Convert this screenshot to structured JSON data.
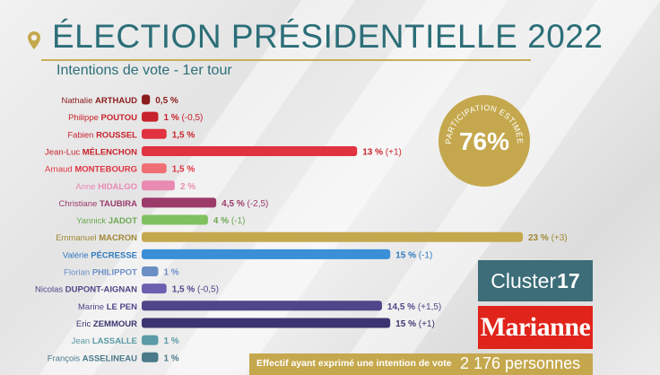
{
  "title": "ÉLECTION PRÉSIDENTIELLE 2022",
  "subtitle": "Intentions de vote - 1er tour",
  "participation": {
    "label": "PARTICIPATION ESTIMÉE",
    "value": "76%"
  },
  "logos": {
    "cluster_name": "Cluster",
    "cluster_number": "17",
    "marianne": "Marianne"
  },
  "footer": {
    "caption": "Effectif ayant exprimé une intention de vote",
    "count": "2 176 personnes"
  },
  "colors": {
    "title": "#2b6e78",
    "accent_gold": "#c5a84d",
    "cluster_blue": "#3c6d78",
    "marianne_red": "#e1241b"
  },
  "chart_data": {
    "type": "bar",
    "orientation": "horizontal",
    "title": "Intentions de vote - 1er tour",
    "categories": [
      {
        "first": "Nathalie",
        "last": "ARTHAUD"
      },
      {
        "first": "Philippe",
        "last": "POUTOU"
      },
      {
        "first": "Fabien",
        "last": "ROUSSEL"
      },
      {
        "first": "Jean-Luc",
        "last": "MÉLENCHON"
      },
      {
        "first": "Arnaud",
        "last": "MONTEBOURG"
      },
      {
        "first": "Anne",
        "last": "HIDALGO"
      },
      {
        "first": "Christiane",
        "last": "TAUBIRA"
      },
      {
        "first": "Yannick",
        "last": "JADOT"
      },
      {
        "first": "Emmanuel",
        "last": "MACRON"
      },
      {
        "first": "Valérie",
        "last": "PÉCRESSE"
      },
      {
        "first": "Florian",
        "last": "PHILIPPOT"
      },
      {
        "first": "Nicolas",
        "last": "DUPONT-AIGNAN"
      },
      {
        "first": "Marine",
        "last": "LE PEN"
      },
      {
        "first": "Eric",
        "last": "ZEMMOUR"
      },
      {
        "first": "Jean",
        "last": "LASSALLE"
      },
      {
        "first": "François",
        "last": "ASSELINEAU"
      }
    ],
    "values": [
      0.5,
      1,
      1.5,
      13,
      1.5,
      2,
      4.5,
      4,
      23,
      15,
      1,
      1.5,
      14.5,
      15,
      1,
      1
    ],
    "value_labels": [
      "0,5 %",
      "1 %",
      "1,5 %",
      "13 %",
      "1,5 %",
      "2 %",
      "4,5 %",
      "4 %",
      "23 %",
      "15 %",
      "1 %",
      "1,5 %",
      "14,5 %",
      "15 %",
      "1 %",
      "1 %"
    ],
    "changes": [
      "",
      "(-0,5)",
      "",
      "(+1)",
      "",
      "",
      "(-2,5)",
      "(-1)",
      "(+3)",
      "(-1)",
      "",
      "(-0,5)",
      "(+1,5)",
      "(+1)",
      "",
      ""
    ],
    "colors": [
      "#8c1c1c",
      "#c8232c",
      "#e0323f",
      "#e0323f",
      "#f06e73",
      "#e98ab2",
      "#9c3a6a",
      "#7fc15f",
      "#c5a84d",
      "#3a8fd6",
      "#6b8fc5",
      "#6b5fb0",
      "#4e4688",
      "#3a3570",
      "#5b9aa6",
      "#4a7a8a"
    ],
    "value_colors": [
      "#8c1c1c",
      "#c8232c",
      "#c8232c",
      "#c8232c",
      "#e0323f",
      "#e98ab2",
      "#9c3a6a",
      "#6aa850",
      "#a08735",
      "#2f7ac0",
      "#6b8fc5",
      "#4e4688",
      "#4e4688",
      "#3a3570",
      "#5b9aa6",
      "#4a7a8a"
    ],
    "name_colors": [
      "#8c1c1c",
      "#c8232c",
      "#c8232c",
      "#c8232c",
      "#e0323f",
      "#e98ab2",
      "#9c3a6a",
      "#6aa850",
      "#a08735",
      "#2f7ac0",
      "#6b8fc5",
      "#4e4688",
      "#4e4688",
      "#3a3570",
      "#5b9aa6",
      "#4a7a8a"
    ],
    "xlim": [
      0,
      23
    ]
  }
}
